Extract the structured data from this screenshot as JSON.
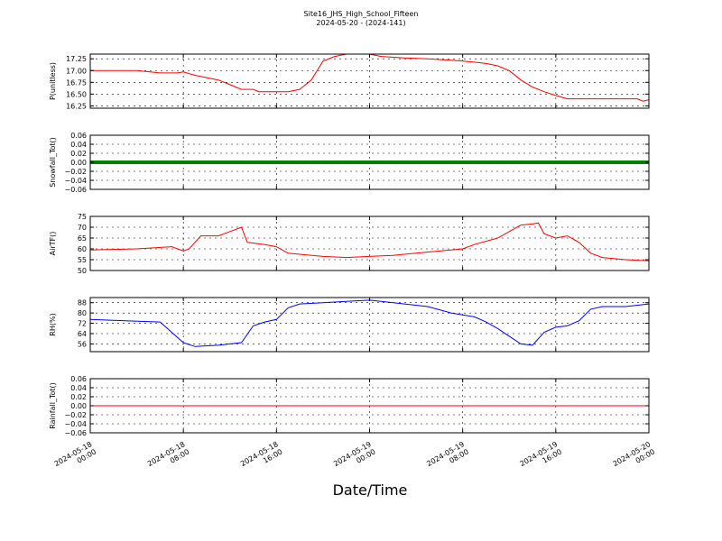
{
  "title": "Site16_JHS_High_School_Fifteen",
  "subtitle": "2024-05-20 - (2024-141)",
  "xlabel": "Date/Time",
  "chart_data": {
    "type": "line",
    "grid": true,
    "x_range": [
      "2024-05-18 00:00",
      "2024-05-20 00:00"
    ],
    "x_ticks": [
      {
        "x": "2024-05-18 00:00",
        "date": "2024-05-18",
        "time": "00:00"
      },
      {
        "x": "2024-05-18 08:00",
        "date": "2024-05-18",
        "time": "08:00"
      },
      {
        "x": "2024-05-18 16:00",
        "date": "2024-05-18",
        "time": "16:00"
      },
      {
        "x": "2024-05-19 00:00",
        "date": "2024-05-19",
        "time": "00:00"
      },
      {
        "x": "2024-05-19 08:00",
        "date": "2024-05-19",
        "time": "08:00"
      },
      {
        "x": "2024-05-19 16:00",
        "date": "2024-05-19",
        "time": "16:00"
      },
      {
        "x": "2024-05-20 00:00",
        "date": "2024-05-20",
        "time": "00:00"
      }
    ],
    "panels": [
      {
        "ylabel": "P(unitless)",
        "color": "#ff0000",
        "ylim": [
          16.2,
          17.35
        ],
        "yticks": [
          16.25,
          16.5,
          16.75,
          17.0,
          17.25
        ],
        "yticklabels": [
          "16.25",
          "16.50",
          "16.75",
          "17.00",
          "17.25"
        ],
        "points": [
          [
            "2024-05-18 00:00",
            17.0
          ],
          [
            "2024-05-18 04:00",
            17.0
          ],
          [
            "2024-05-18 06:00",
            16.95
          ],
          [
            "2024-05-18 07:30",
            16.95
          ],
          [
            "2024-05-18 08:00",
            16.97
          ],
          [
            "2024-05-18 09:00",
            16.9
          ],
          [
            "2024-05-18 10:00",
            16.85
          ],
          [
            "2024-05-18 11:00",
            16.8
          ],
          [
            "2024-05-18 12:00",
            16.7
          ],
          [
            "2024-05-18 13:00",
            16.6
          ],
          [
            "2024-05-18 14:00",
            16.6
          ],
          [
            "2024-05-18 14:30",
            16.55
          ],
          [
            "2024-05-18 17:00",
            16.55
          ],
          [
            "2024-05-18 18:00",
            16.6
          ],
          [
            "2024-05-18 19:00",
            16.8
          ],
          [
            "2024-05-18 20:00",
            17.2
          ],
          [
            "2024-05-18 21:00",
            17.3
          ],
          [
            "2024-05-18 22:00",
            17.35
          ],
          [
            "2024-05-19 00:00",
            17.35
          ],
          [
            "2024-05-19 01:00",
            17.3
          ],
          [
            "2024-05-19 03:00",
            17.27
          ],
          [
            "2024-05-19 05:00",
            17.25
          ],
          [
            "2024-05-19 07:00",
            17.22
          ],
          [
            "2024-05-19 08:00",
            17.2
          ],
          [
            "2024-05-19 09:00",
            17.18
          ],
          [
            "2024-05-19 10:00",
            17.15
          ],
          [
            "2024-05-19 11:00",
            17.1
          ],
          [
            "2024-05-19 12:00",
            17.0
          ],
          [
            "2024-05-19 13:00",
            16.8
          ],
          [
            "2024-05-19 14:00",
            16.65
          ],
          [
            "2024-05-19 15:00",
            16.55
          ],
          [
            "2024-05-19 16:00",
            16.47
          ],
          [
            "2024-05-19 17:00",
            16.4
          ],
          [
            "2024-05-19 23:00",
            16.4
          ],
          [
            "2024-05-19 23:30",
            16.35
          ],
          [
            "2024-05-20 00:00",
            16.38
          ]
        ]
      },
      {
        "ylabel": "Snowfall_Tot()",
        "color": "#008000",
        "ylim": [
          -0.06,
          0.06
        ],
        "yticks": [
          -0.06,
          -0.04,
          -0.02,
          0.0,
          0.02,
          0.04,
          0.06
        ],
        "yticklabels": [
          "−0.06",
          "−0.04",
          "−0.02",
          "0.00",
          "0.02",
          "0.04",
          "0.06"
        ],
        "points": [
          [
            "2024-05-18 00:00",
            0.0
          ],
          [
            "2024-05-20 00:00",
            0.0
          ]
        ]
      },
      {
        "ylabel": "AirTF()",
        "color": "#ff0000",
        "ylim": [
          50,
          75
        ],
        "yticks": [
          50,
          55,
          60,
          65,
          70,
          75
        ],
        "yticklabels": [
          "50",
          "55",
          "60",
          "65",
          "70",
          "75"
        ],
        "points": [
          [
            "2024-05-18 00:00",
            59.5
          ],
          [
            "2024-05-18 04:00",
            60
          ],
          [
            "2024-05-18 07:00",
            61
          ],
          [
            "2024-05-18 08:00",
            59
          ],
          [
            "2024-05-18 08:30",
            60
          ],
          [
            "2024-05-18 09:30",
            66
          ],
          [
            "2024-05-18 11:00",
            66
          ],
          [
            "2024-05-18 12:00",
            68
          ],
          [
            "2024-05-18 13:00",
            70
          ],
          [
            "2024-05-18 13:30",
            63
          ],
          [
            "2024-05-18 15:00",
            62
          ],
          [
            "2024-05-18 16:00",
            61
          ],
          [
            "2024-05-18 17:00",
            58
          ],
          [
            "2024-05-18 18:00",
            57.5
          ],
          [
            "2024-05-18 20:00",
            56.5
          ],
          [
            "2024-05-18 22:00",
            56
          ],
          [
            "2024-05-19 00:00",
            56.5
          ],
          [
            "2024-05-19 02:00",
            57
          ],
          [
            "2024-05-19 04:00",
            58
          ],
          [
            "2024-05-19 06:00",
            59
          ],
          [
            "2024-05-19 08:00",
            60
          ],
          [
            "2024-05-19 09:00",
            62
          ],
          [
            "2024-05-19 11:00",
            65
          ],
          [
            "2024-05-19 12:00",
            68
          ],
          [
            "2024-05-19 13:00",
            71
          ],
          [
            "2024-05-19 14:00",
            71.5
          ],
          [
            "2024-05-19 14:30",
            72
          ],
          [
            "2024-05-19 15:00",
            67
          ],
          [
            "2024-05-19 16:00",
            65
          ],
          [
            "2024-05-19 17:00",
            66
          ],
          [
            "2024-05-19 18:00",
            63
          ],
          [
            "2024-05-19 19:00",
            58
          ],
          [
            "2024-05-19 20:00",
            56
          ],
          [
            "2024-05-19 22:00",
            55
          ],
          [
            "2024-05-20 00:00",
            54.5
          ]
        ]
      },
      {
        "ylabel": "RH(%)",
        "color": "#0000ff",
        "ylim": [
          50,
          92
        ],
        "yticks": [
          56,
          64,
          72,
          80,
          88
        ],
        "yticklabels": [
          "56",
          "64",
          "72",
          "80",
          "88"
        ],
        "points": [
          [
            "2024-05-18 00:00",
            75
          ],
          [
            "2024-05-18 03:00",
            74
          ],
          [
            "2024-05-18 06:00",
            73
          ],
          [
            "2024-05-18 07:00",
            65
          ],
          [
            "2024-05-18 08:00",
            57
          ],
          [
            "2024-05-18 09:00",
            54
          ],
          [
            "2024-05-18 11:00",
            55
          ],
          [
            "2024-05-18 13:00",
            57
          ],
          [
            "2024-05-18 14:00",
            70
          ],
          [
            "2024-05-18 15:00",
            73
          ],
          [
            "2024-05-18 16:00",
            75
          ],
          [
            "2024-05-18 17:00",
            84
          ],
          [
            "2024-05-18 18:00",
            87
          ],
          [
            "2024-05-18 20:00",
            88
          ],
          [
            "2024-05-18 22:00",
            89
          ],
          [
            "2024-05-19 00:00",
            90
          ],
          [
            "2024-05-19 01:00",
            89
          ],
          [
            "2024-05-19 03:00",
            87
          ],
          [
            "2024-05-19 05:00",
            85
          ],
          [
            "2024-05-19 07:00",
            80
          ],
          [
            "2024-05-19 09:00",
            77
          ],
          [
            "2024-05-19 10:00",
            73
          ],
          [
            "2024-05-19 11:00",
            68
          ],
          [
            "2024-05-19 12:00",
            62
          ],
          [
            "2024-05-19 13:00",
            56
          ],
          [
            "2024-05-19 14:00",
            55
          ],
          [
            "2024-05-19 15:00",
            65
          ],
          [
            "2024-05-19 16:00",
            69
          ],
          [
            "2024-05-19 17:00",
            70
          ],
          [
            "2024-05-19 18:00",
            74
          ],
          [
            "2024-05-19 19:00",
            83
          ],
          [
            "2024-05-19 20:00",
            85
          ],
          [
            "2024-05-19 22:00",
            85
          ],
          [
            "2024-05-20 00:00",
            87
          ]
        ]
      },
      {
        "ylabel": "Rainfall_Tot()",
        "color": "#ff0000",
        "ylim": [
          -0.06,
          0.06
        ],
        "yticks": [
          -0.06,
          -0.04,
          -0.02,
          0.0,
          0.02,
          0.04,
          0.06
        ],
        "yticklabels": [
          "−0.06",
          "−0.04",
          "−0.02",
          "0.00",
          "0.02",
          "0.04",
          "0.06"
        ],
        "points": [
          [
            "2024-05-18 00:00",
            0.0
          ],
          [
            "2024-05-20 00:00",
            0.0
          ]
        ]
      }
    ]
  }
}
